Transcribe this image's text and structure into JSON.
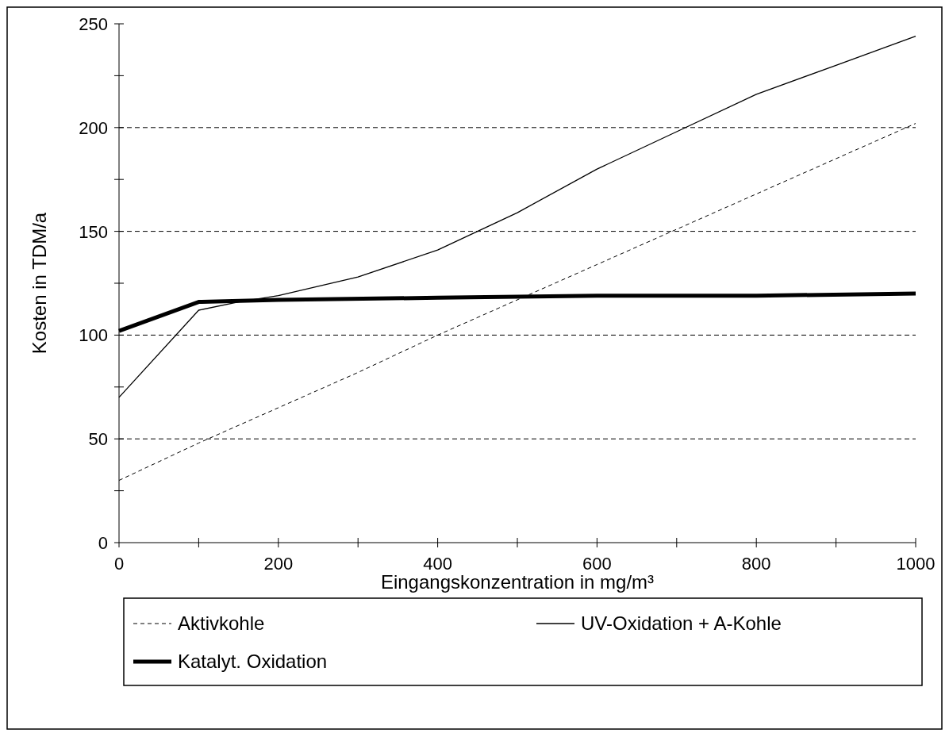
{
  "chart_data": {
    "type": "line",
    "xlabel": "Eingangskonzentration in mg/m³",
    "ylabel": "Kosten in TDM/a",
    "xlim": [
      0,
      1000
    ],
    "ylim": [
      0,
      250
    ],
    "xticks": [
      0,
      {
        "value": 100,
        "label": null
      },
      200,
      {
        "value": 300,
        "label": null
      },
      400,
      {
        "value": 500,
        "label": null
      },
      600,
      {
        "value": 700,
        "label": null
      },
      800,
      {
        "value": 900,
        "label": null
      },
      1000
    ],
    "yticks": [
      0,
      {
        "value": 25,
        "label": null
      },
      50,
      {
        "value": 75,
        "label": null
      },
      100,
      {
        "value": 125,
        "label": null
      },
      150,
      {
        "value": 175,
        "label": null
      },
      200,
      {
        "value": 225,
        "label": null
      },
      250
    ],
    "grid": "y",
    "legend": "bottom",
    "series": [
      {
        "name": "Aktivkohle",
        "color": "#000000",
        "line_style": "dashed",
        "x": [
          0,
          100,
          200,
          300,
          400,
          500,
          600,
          700,
          800,
          900,
          1000
        ],
        "values": [
          30,
          48,
          65,
          82,
          100,
          117,
          134,
          151,
          168,
          185,
          202
        ]
      },
      {
        "name": "UV-Oxidation + A-Kohle",
        "color": "#000000",
        "line_style": "solid",
        "x": [
          0,
          100,
          150,
          200,
          300,
          400,
          500,
          600,
          700,
          800,
          900,
          1000
        ],
        "values": [
          70,
          112,
          116,
          119,
          128,
          141,
          159,
          180,
          198,
          216,
          230,
          244
        ]
      },
      {
        "name": "Katalyt. Oxidation",
        "color": "#000000",
        "line_style": "solid",
        "x": [
          0,
          100,
          200,
          400,
          600,
          800,
          1000
        ],
        "values": [
          102,
          116,
          117,
          118,
          119,
          119,
          120
        ]
      }
    ]
  }
}
